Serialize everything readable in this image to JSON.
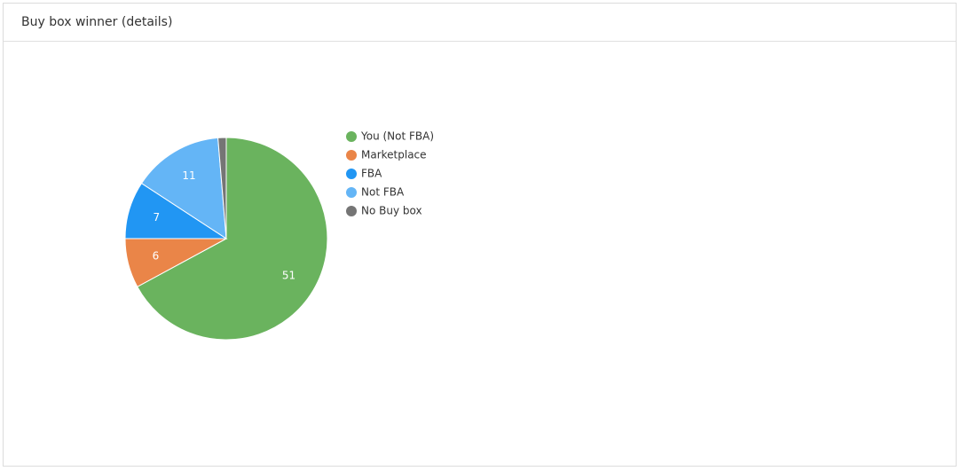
{
  "chart_data": {
    "type": "pie",
    "title": "Buy box winner (details)",
    "categories": [
      "You (Not FBA)",
      "Marketplace",
      "FBA",
      "Not FBA",
      "No Buy box"
    ],
    "values": [
      51,
      6,
      7,
      11,
      1
    ],
    "colors": [
      "#6ab35e",
      "#ea8548",
      "#2196f3",
      "#64b5f6",
      "#757575"
    ]
  }
}
